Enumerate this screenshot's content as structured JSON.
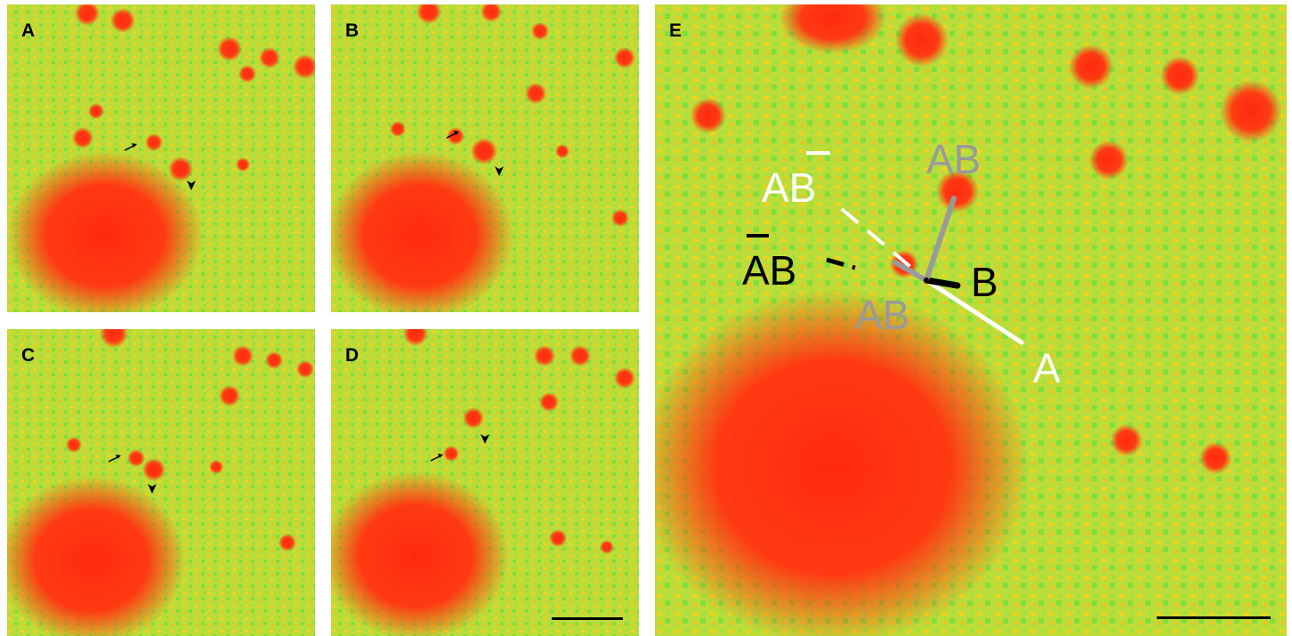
{
  "panels": [
    {
      "id": "A",
      "label": "A",
      "scalebar": false
    },
    {
      "id": "B",
      "label": "B",
      "scalebar": false
    },
    {
      "id": "C",
      "label": "C",
      "scalebar": false
    },
    {
      "id": "D",
      "label": "D",
      "scalebar": true
    },
    {
      "id": "E",
      "label": "E",
      "scalebar": true
    }
  ],
  "annotations": {
    "A": "A",
    "B": "B",
    "AB_top": "AB",
    "AB_bottom": "AB",
    "AbarB_left": "AB",
    "ABbar": "AB"
  },
  "colors": {
    "background": "#b9da3c",
    "hot": "#ff2a10",
    "warm": "#f4d21c",
    "cool": "#7fe03a",
    "annot_white": "#ffffff",
    "annot_gray": "#9a9a9a",
    "annot_black": "#000000"
  }
}
